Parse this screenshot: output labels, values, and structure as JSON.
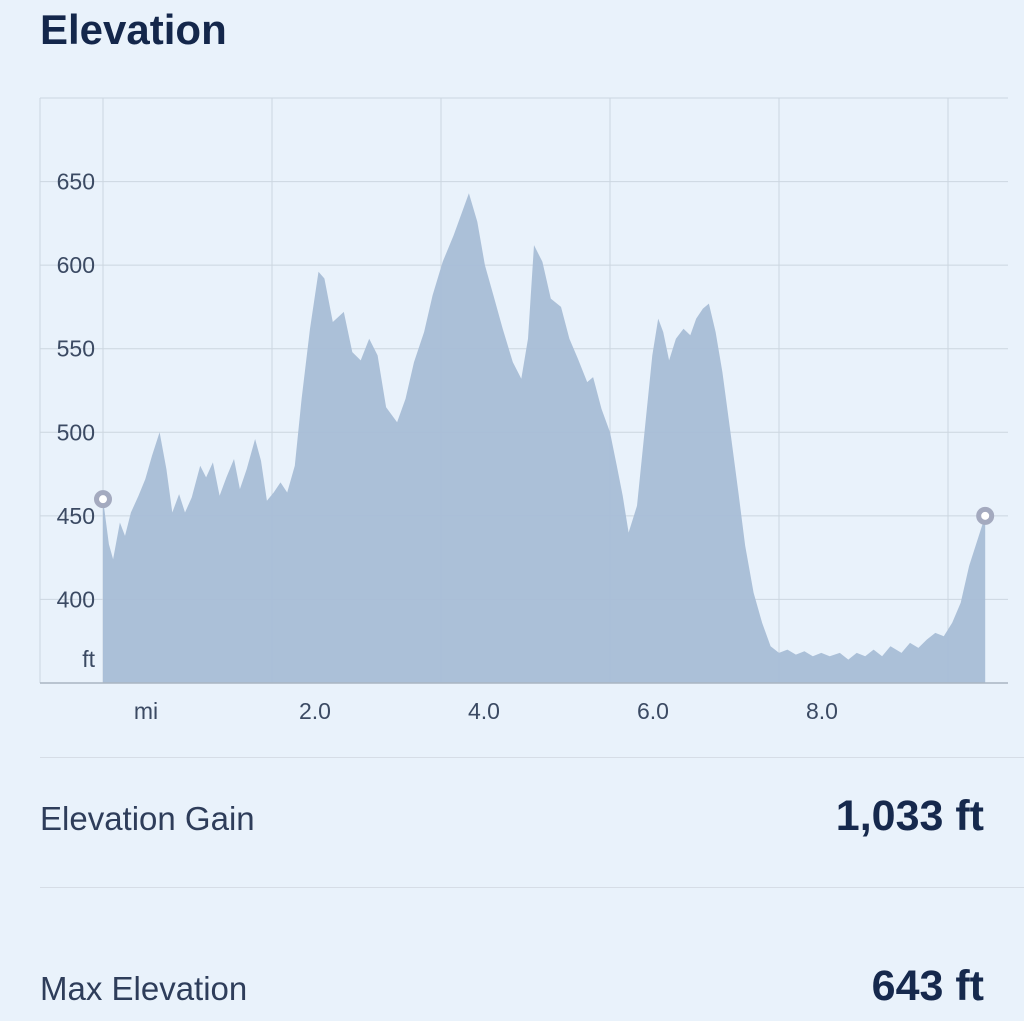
{
  "page": {
    "title": "Elevation"
  },
  "stats": [
    {
      "label": "Elevation Gain",
      "value": "1,033 ft"
    },
    {
      "label": "Max Elevation",
      "value": "643 ft"
    }
  ],
  "colors": {
    "bg": "#e9f2fb",
    "title": "#14274b",
    "tick": "#3b4a63",
    "area": "#a8bdd6",
    "grid": "#ccd6e0",
    "axis": "#a9b5c1",
    "divider": "#d6dde6",
    "stat-label": "#2e3d5a",
    "stat-value": "#16294d",
    "marker-ring": "#a4aabf"
  },
  "chart_data": {
    "type": "area",
    "title": "Elevation",
    "x_unit": "mi",
    "y_unit": "ft",
    "xlim": [
      0,
      10.7
    ],
    "ylim": [
      350,
      700
    ],
    "grid": true,
    "y_ticks": [
      400,
      450,
      500,
      550,
      600,
      650
    ],
    "x_ticks": [
      {
        "mile": 0,
        "label": "mi"
      },
      {
        "mile": 2,
        "label": "2.0"
      },
      {
        "mile": 4,
        "label": "4.0"
      },
      {
        "mile": 6,
        "label": "6.0"
      },
      {
        "mile": 8,
        "label": "8.0"
      },
      {
        "mile": 10,
        "label": ""
      }
    ],
    "series": [
      {
        "name": "elevation-profile",
        "x": [
          0,
          0.07,
          0.12,
          0.2,
          0.26,
          0.33,
          0.42,
          0.5,
          0.58,
          0.67,
          0.75,
          0.82,
          0.9,
          0.97,
          1.05,
          1.15,
          1.22,
          1.3,
          1.38,
          1.46,
          1.55,
          1.62,
          1.7,
          1.8,
          1.87,
          1.94,
          2.02,
          2.1,
          2.18,
          2.27,
          2.35,
          2.45,
          2.55,
          2.62,
          2.72,
          2.85,
          2.95,
          3.05,
          3.15,
          3.25,
          3.35,
          3.48,
          3.58,
          3.68,
          3.8,
          3.9,
          4.02,
          4.15,
          4.33,
          4.43,
          4.52,
          4.62,
          4.73,
          4.85,
          4.95,
          5.03,
          5.1,
          5.2,
          5.3,
          5.42,
          5.52,
          5.62,
          5.73,
          5.8,
          5.9,
          6.0,
          6.08,
          6.15,
          6.22,
          6.32,
          6.42,
          6.5,
          6.57,
          6.63,
          6.7,
          6.78,
          6.87,
          6.95,
          7.02,
          7.1,
          7.17,
          7.25,
          7.33,
          7.42,
          7.52,
          7.6,
          7.7,
          7.8,
          7.9,
          8.0,
          8.1,
          8.2,
          8.3,
          8.4,
          8.5,
          8.6,
          8.72,
          8.82,
          8.92,
          9.02,
          9.12,
          9.22,
          9.32,
          9.45,
          9.55,
          9.65,
          9.75,
          9.85,
          9.95,
          10.05,
          10.15,
          10.25,
          10.44
        ],
        "y": [
          460,
          433,
          424,
          446,
          438,
          452,
          462,
          472,
          486,
          500,
          478,
          452,
          463,
          452,
          461,
          480,
          473,
          482,
          462,
          473,
          484,
          466,
          478,
          496,
          483,
          459,
          464,
          470,
          464,
          480,
          520,
          562,
          596,
          592,
          566,
          572,
          548,
          543,
          556,
          546,
          515,
          506,
          520,
          542,
          560,
          582,
          602,
          618,
          643,
          626,
          600,
          582,
          562,
          542,
          532,
          556,
          612,
          602,
          580,
          575,
          556,
          544,
          530,
          533,
          514,
          500,
          480,
          462,
          440,
          456,
          506,
          546,
          568,
          560,
          543,
          556,
          562,
          558,
          568,
          574,
          577,
          560,
          536,
          502,
          464,
          432,
          404,
          386,
          372,
          368,
          370,
          367,
          369,
          366,
          368,
          366,
          368,
          364,
          368,
          366,
          370,
          366,
          372,
          368,
          374,
          371,
          376,
          380,
          378,
          386,
          398,
          420,
          450
        ]
      }
    ],
    "markers": {
      "start": {
        "x": 0,
        "y": 460
      },
      "end": {
        "x": 10.44,
        "y": 450
      }
    }
  }
}
